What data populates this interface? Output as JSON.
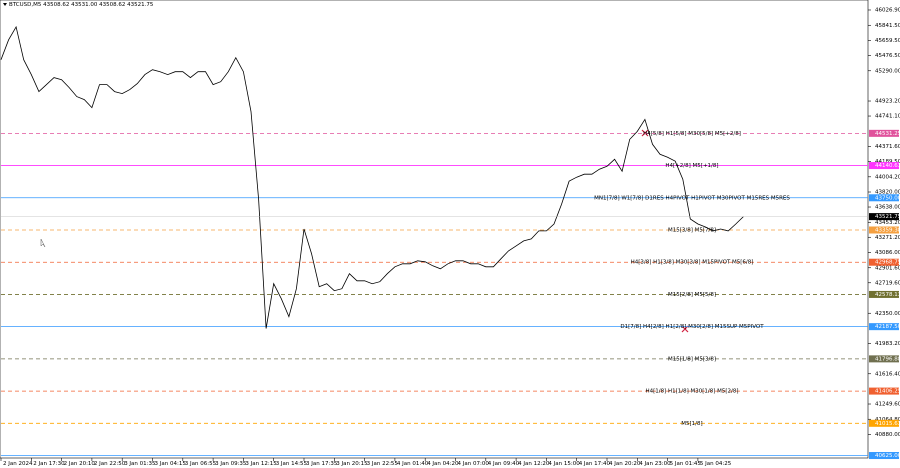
{
  "chart_data": {
    "type": "line",
    "title": "BTCUSD,M5  43508.62 43531.00 43508.62 43521.75",
    "color": "#000000",
    "categories": [
      "2 Jan 2024",
      null,
      null,
      null,
      "2 Jan 17:30",
      null,
      null,
      null,
      "2 Jan 20:10",
      null,
      null,
      null,
      "2 Jan 22:50",
      null,
      null,
      null,
      "3 Jan 01:35",
      null,
      null,
      null,
      "3 Jan 04:15",
      null,
      null,
      null,
      "3 Jan 06:55",
      null,
      null,
      null,
      "3 Jan 09:35",
      null,
      null,
      null,
      "3 Jan 12:15",
      null,
      null,
      null,
      "3 Jan 14:55",
      null,
      null,
      null,
      "3 Jan 17:35",
      null,
      null,
      null,
      "3 Jan 20:15",
      null,
      null,
      null,
      "3 Jan 22:55",
      null,
      null,
      null,
      "4 Jan 01:40",
      null,
      null,
      null,
      "4 Jan 04:20",
      null,
      null,
      null,
      "4 Jan 07:00",
      null,
      null,
      null,
      "4 Jan 09:40",
      null,
      null,
      null,
      "4 Jan 12:20",
      null,
      null,
      null,
      "4 Jan 15:00",
      null,
      null,
      null,
      "4 Jan 17:40",
      null,
      null,
      null,
      "4 Jan 20:20",
      null,
      null,
      null,
      "4 Jan 23:00",
      null,
      null,
      null,
      "5 Jan 01:45",
      null,
      null,
      null,
      "5 Jan 04:25",
      null,
      null,
      null,
      null,
      null,
      null
    ],
    "values": [
      45424,
      45665,
      45822,
      45424,
      45243,
      45038,
      45122,
      45207,
      45182,
      45086,
      44977,
      44941,
      44844,
      45122,
      45122,
      45038,
      45013,
      45062,
      45134,
      45243,
      45303,
      45279,
      45243,
      45279,
      45279,
      45207,
      45279,
      45279,
      45122,
      45158,
      45279,
      45448,
      45279,
      44796,
      43734,
      42165,
      42708,
      42527,
      42310,
      42648,
      43372,
      43070,
      42672,
      42708,
      42624,
      42648,
      42829,
      42744,
      42744,
      42708,
      42732,
      42829,
      42913,
      42949,
      42949,
      42986,
      42974,
      42925,
      42889,
      42949,
      42986,
      42986,
      42949,
      42949,
      42913,
      42913,
      43010,
      43106,
      43167,
      43227,
      43251,
      43348,
      43348,
      43432,
      43674,
      43951,
      43999,
      44036,
      44036,
      44096,
      44132,
      44217,
      44072,
      44458,
      44555,
      44700,
      44398,
      44277,
      44241,
      44193,
      43975,
      43493,
      43432,
      43396,
      43348,
      43372,
      43348,
      43432,
      43521.75
    ],
    "ylim": [
      40595,
      46148
    ],
    "yticks": [
      {
        "value": 46026.9,
        "label": "46026.90"
      },
      {
        "value": 45841.5,
        "label": "45841.50"
      },
      {
        "value": 45659.5,
        "label": "45659.50"
      },
      {
        "value": 45476.5,
        "label": "45476.50"
      },
      {
        "value": 45290,
        "label": "45290.00"
      },
      {
        "value": 44923.2,
        "label": "44923.20"
      },
      {
        "value": 44741.1,
        "label": "44741.10"
      },
      {
        "value": 44371.6,
        "label": "44371.60"
      },
      {
        "value": 44189.5,
        "label": "44189.50"
      },
      {
        "value": 44004.2,
        "label": "44004.20"
      },
      {
        "value": 43820,
        "label": "43820.00"
      },
      {
        "value": 43638,
        "label": "43638.00"
      },
      {
        "value": 43453.2,
        "label": "43453.20"
      },
      {
        "value": 43271.2,
        "label": "43271.20"
      },
      {
        "value": 43086,
        "label": "43086.00"
      },
      {
        "value": 42901.6,
        "label": "42901.60"
      },
      {
        "value": 42719.6,
        "label": "42719.60"
      },
      {
        "value": 42350,
        "label": "42350.00"
      },
      {
        "value": 41983.2,
        "label": "41983.20"
      },
      {
        "value": 41616.4,
        "label": "41616.40"
      },
      {
        "value": 41249.6,
        "label": "41249.60"
      },
      {
        "value": 41064.8,
        "label": "41064.80"
      },
      {
        "value": 40880,
        "label": "40880.00"
      }
    ],
    "grid": false,
    "levels": [
      {
        "value": 44531.25,
        "label": "44531.25",
        "text": "H4[5/8] H1[5/8] M30[5/8] M5[+2/8]",
        "color": "#e0529c",
        "dashed": true
      },
      {
        "value": 44140.63,
        "label": "44140.63",
        "text": "H4[+2/8] M5[+1/8]",
        "color": "#ff33ff",
        "dashed": false
      },
      {
        "value": 43750,
        "label": "43750.00",
        "text": "MN1[7/8] W1[7/8] D1RES H4PIVOT H1PIVOT M30PIVOT M15RES M5RES",
        "color": "#3399ff",
        "dashed": false
      },
      {
        "value": 43359.38,
        "label": "43359.38",
        "text": "M15[3/8] M5[7/8]",
        "color": "#f5a040",
        "dashed": true
      },
      {
        "value": 42968.75,
        "label": "42968.75",
        "text": "H4[3/8] H1[3/8] M30[3/8] M15PIVOT M5[6/8]",
        "color": "#f06030",
        "dashed": true
      },
      {
        "value": 42578.13,
        "label": "42578.13",
        "text": "M15[2/8] M5[5/8]",
        "color": "#707030",
        "dashed": true
      },
      {
        "value": 42187.5,
        "label": "42187.50",
        "text": "D1[7/8] H4[2/8] H1[2/8] M30[2/8] M15SUP M5PIVOT",
        "color": "#3399ff",
        "dashed": false
      },
      {
        "value": 41796.88,
        "label": "41796.88",
        "text": "M15[1/8] M5[3/8]",
        "color": "#707050",
        "dashed": true
      },
      {
        "value": 41406.25,
        "label": "41406.25",
        "text": "H4[1/8] H1[1/8] M30[1/8] M5[2/8]",
        "color": "#f06030",
        "dashed": true
      },
      {
        "value": 41015.63,
        "label": "41015.63",
        "text": "M5[1/8]",
        "color": "#ffa500",
        "dashed": true
      },
      {
        "value": 40625,
        "label": "40625.00",
        "text": "",
        "color": "#3399ff",
        "dashed": false
      }
    ],
    "current_price": {
      "value": 43521.75,
      "label": "43521.75"
    }
  }
}
